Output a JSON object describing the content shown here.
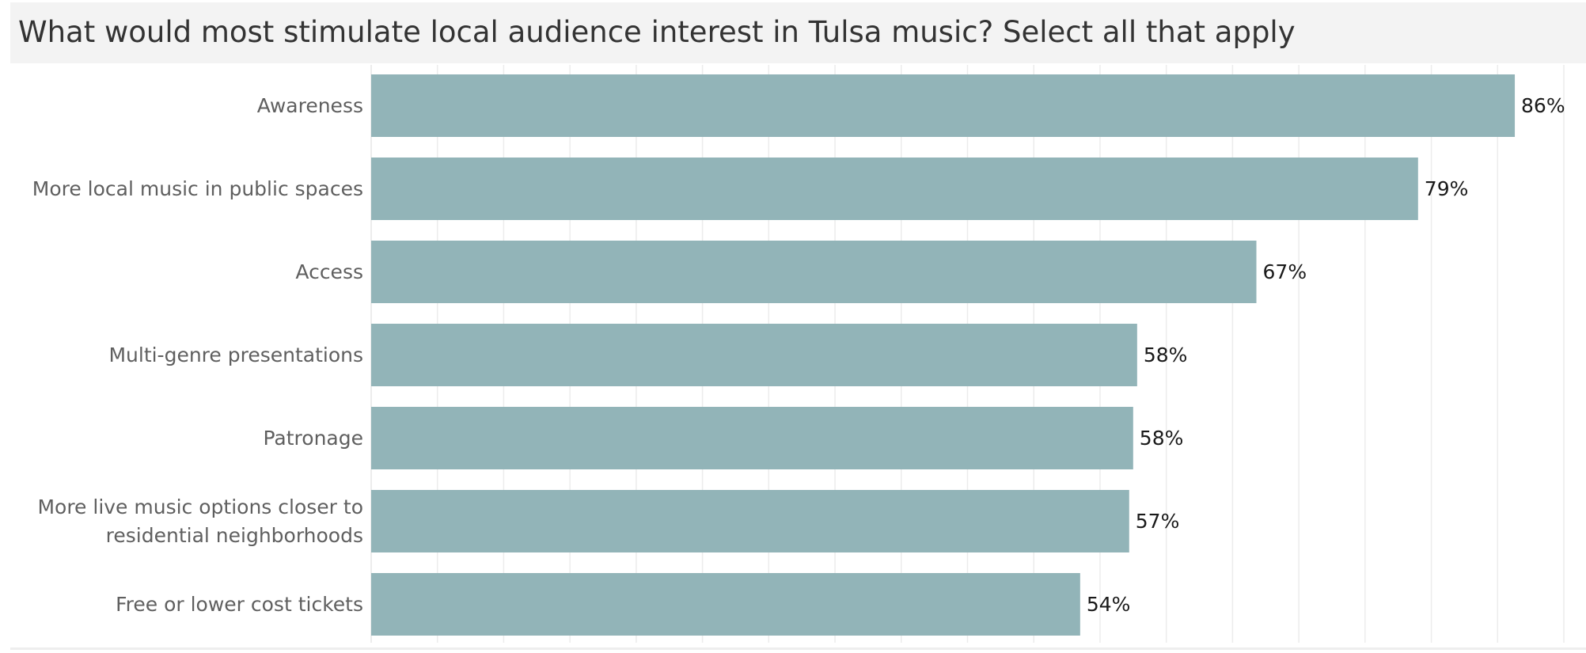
{
  "chart_data": {
    "type": "bar",
    "orientation": "horizontal",
    "title": "What would most stimulate local audience interest in Tulsa music? Select all that apply",
    "categories": [
      "Awareness",
      "More local music in public spaces",
      "Access",
      "Multi-genre presentations",
      "Patronage",
      "More live music options closer to residential neighborhoods",
      "Free or lower cost tickets"
    ],
    "category_lines": [
      [
        "Awareness"
      ],
      [
        "More local music in public spaces"
      ],
      [
        "Access"
      ],
      [
        "Multi-genre presentations"
      ],
      [
        "Patronage"
      ],
      [
        "More live music options closer to",
        "residential neighborhoods"
      ],
      [
        "Free or lower cost tickets"
      ]
    ],
    "values": [
      86.3,
      79.0,
      66.8,
      57.8,
      57.5,
      57.2,
      53.5
    ],
    "data_labels": [
      "86%",
      "79%",
      "67%",
      "58%",
      "58%",
      "57%",
      "54%"
    ],
    "xlim": [
      0,
      90
    ],
    "gridlines": "vertical",
    "bar_color": "#92b4b8",
    "grid_color": "#ececec",
    "title_bar_color": "#f3f3f3"
  }
}
